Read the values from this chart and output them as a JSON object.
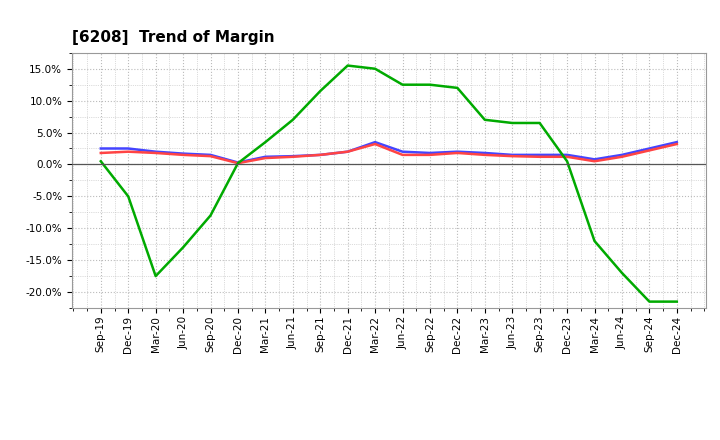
{
  "title": "[6208]  Trend of Margin",
  "x_labels": [
    "Sep-19",
    "Dec-19",
    "Mar-20",
    "Jun-20",
    "Sep-20",
    "Dec-20",
    "Mar-21",
    "Jun-21",
    "Sep-21",
    "Dec-21",
    "Mar-22",
    "Jun-22",
    "Sep-22",
    "Dec-22",
    "Mar-23",
    "Jun-23",
    "Sep-23",
    "Dec-23",
    "Mar-24",
    "Jun-24",
    "Sep-24",
    "Dec-24"
  ],
  "ordinary_income": [
    2.5,
    2.5,
    2.0,
    1.7,
    1.5,
    0.3,
    1.2,
    1.3,
    1.5,
    2.0,
    3.5,
    2.0,
    1.8,
    2.0,
    1.8,
    1.5,
    1.5,
    1.5,
    0.8,
    1.5,
    2.5,
    3.5
  ],
  "net_income": [
    1.8,
    2.0,
    1.8,
    1.5,
    1.3,
    0.2,
    1.0,
    1.2,
    1.5,
    2.0,
    3.2,
    1.5,
    1.5,
    1.8,
    1.5,
    1.3,
    1.2,
    1.2,
    0.5,
    1.2,
    2.2,
    3.2
  ],
  "operating_cashflow": [
    0.5,
    -5.0,
    -17.5,
    -13.0,
    -8.0,
    0.2,
    3.5,
    7.0,
    11.5,
    15.5,
    15.0,
    12.5,
    12.5,
    12.0,
    7.0,
    6.5,
    6.5,
    0.5,
    -12.0,
    -17.0,
    -21.5,
    -21.5
  ],
  "ordinary_income_color": "#4444ff",
  "net_income_color": "#ff4444",
  "operating_cashflow_color": "#00aa00",
  "ylim": [
    -22.5,
    17.5
  ],
  "yticks": [
    -20.0,
    -15.0,
    -10.0,
    -5.0,
    0.0,
    5.0,
    10.0,
    15.0
  ],
  "background_color": "#ffffff",
  "plot_bg_color": "#ffffff",
  "grid_color": "#bbbbbb",
  "title_fontsize": 11,
  "legend_fontsize": 8.5,
  "tick_fontsize": 7.5
}
